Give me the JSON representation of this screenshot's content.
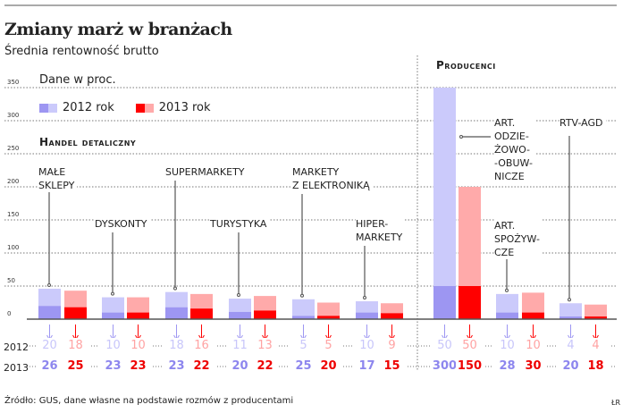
{
  "title": "Zmiany marż w branżach",
  "subtitle": "Średnia rentowność brutto",
  "unit_note": "Dane w proc.",
  "source": "Źródło: GUS, dane własne na podstawie rozmów z producentami",
  "credit": "ŁR",
  "legend": [
    {
      "label": "2012 rok",
      "colors": [
        "#9d96f2",
        "#cbcafb"
      ]
    },
    {
      "label": "2013 rok",
      "colors": [
        "#ff0000",
        "#ffaaaa"
      ]
    }
  ],
  "chart_data": {
    "type": "bar",
    "stacked_note_free": true,
    "ylim": [
      0,
      350
    ],
    "yticks": [
      "0",
      "50",
      "100",
      "150",
      "200",
      "250",
      "300",
      "350"
    ],
    "grid": true,
    "row_labels": [
      "2012",
      "2013"
    ],
    "sections": [
      {
        "title": "Handel detaliczny",
        "categories": [
          {
            "name": "Małe sklepy",
            "v2012": [
              20,
              26
            ],
            "v2013": [
              18,
              25
            ]
          },
          {
            "name": "Dyskonty",
            "v2012": [
              10,
              23
            ],
            "v2013": [
              10,
              23
            ]
          },
          {
            "name": "Supermarkety",
            "v2012": [
              18,
              23
            ],
            "v2013": [
              16,
              22
            ]
          },
          {
            "name": "Turystyka",
            "v2012": [
              11,
              20
            ],
            "v2013": [
              13,
              22
            ]
          },
          {
            "name": "Markety z elektroniką",
            "v2012": [
              5,
              25
            ],
            "v2013": [
              5,
              20
            ]
          },
          {
            "name": "Hiper-markety",
            "v2012": [
              10,
              17
            ],
            "v2013": [
              9,
              15
            ]
          }
        ]
      },
      {
        "title": "Producenci",
        "categories": [
          {
            "name": "Art. odzie-żowo--obuw-nicze",
            "v2012": [
              50,
              300
            ],
            "v2013": [
              50,
              150
            ]
          },
          {
            "name": "Art. spożyw-cze",
            "v2012": [
              10,
              28
            ],
            "v2013": [
              10,
              30
            ]
          },
          {
            "name": "RTV-AGD",
            "v2012": [
              4,
              20
            ],
            "v2013": [
              4,
              18
            ]
          }
        ]
      }
    ],
    "colors": {
      "p_dark": "#9d96f2",
      "p_light": "#cbcafb",
      "r_dark": "#ff0000",
      "r_light": "#ffaaaa",
      "p_text_light": "#c8c6fa",
      "r_text_light": "#ffa3a3",
      "p_text": "#8d86ee",
      "r_text": "#ee0000"
    }
  }
}
